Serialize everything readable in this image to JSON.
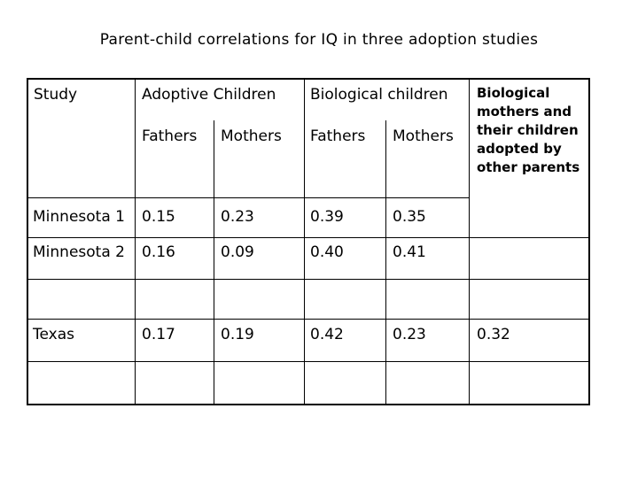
{
  "title": "Parent-child correlations for IQ in three adoption studies",
  "headers": {
    "study": "Study",
    "adoptive": "Adoptive Children",
    "biological": "Biological children",
    "biological_adopted_lines": [
      "Biological",
      "mothers and",
      "their children",
      "adopted by",
      "other parents"
    ],
    "fathers": "Fathers",
    "mothers": "Mothers"
  },
  "rows": [
    {
      "study": "Minnesota 1",
      "adoptive_fathers": "0.15",
      "adoptive_mothers": "0.23",
      "bio_fathers": "0.39",
      "bio_mothers": "0.35",
      "bio_adopted": ""
    },
    {
      "study": "Minnesota 2",
      "adoptive_fathers": "0.16",
      "adoptive_mothers": "0.09",
      "bio_fathers": "0.40",
      "bio_mothers": "0.41",
      "bio_adopted": ""
    },
    {
      "study": "Texas",
      "adoptive_fathers": "0.17",
      "adoptive_mothers": "0.19",
      "bio_fathers": "0.42",
      "bio_mothers": "0.23",
      "bio_adopted": "0.32"
    }
  ]
}
